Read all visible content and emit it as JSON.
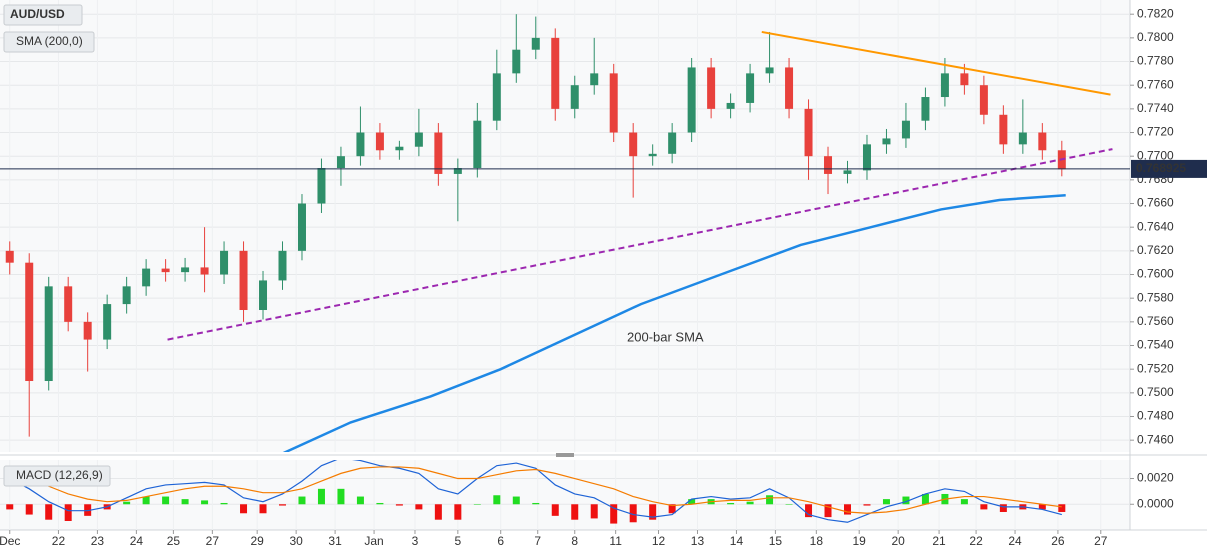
{
  "chart_data": [
    {
      "type": "candlestick",
      "title": "AUD/USD",
      "x": [
        0,
        1,
        2,
        3,
        4,
        5,
        6,
        7,
        8,
        9,
        10,
        11,
        12,
        13,
        14,
        15,
        16,
        17,
        18,
        19,
        20,
        21,
        22,
        23,
        24,
        25,
        26,
        27,
        28,
        29,
        30,
        31,
        32,
        33,
        34,
        35,
        36,
        37,
        38,
        39,
        40,
        41,
        42,
        43,
        44,
        45,
        46,
        47,
        48,
        49,
        50,
        51,
        52,
        53,
        54
      ],
      "open": [
        0.762,
        0.761,
        0.751,
        0.759,
        0.756,
        0.7545,
        0.7575,
        0.759,
        0.7605,
        0.7602,
        0.7606,
        0.76,
        0.762,
        0.757,
        0.7595,
        0.762,
        0.766,
        0.769,
        0.77,
        0.772,
        0.7705,
        0.7708,
        0.772,
        0.7685,
        0.769,
        0.773,
        0.777,
        0.779,
        0.78,
        0.774,
        0.776,
        0.777,
        0.772,
        0.77,
        0.7702,
        0.772,
        0.7775,
        0.774,
        0.7745,
        0.777,
        0.7775,
        0.774,
        0.77,
        0.7685,
        0.7688,
        0.771,
        0.7715,
        0.773,
        0.775,
        0.777,
        0.776,
        0.7735,
        0.771,
        0.772,
        0.7705
      ],
      "high": [
        0.7628,
        0.7618,
        0.7598,
        0.7598,
        0.7568,
        0.7583,
        0.7598,
        0.7613,
        0.7613,
        0.7614,
        0.764,
        0.7628,
        0.7628,
        0.7603,
        0.7628,
        0.7668,
        0.7698,
        0.7708,
        0.7742,
        0.7728,
        0.7713,
        0.774,
        0.7728,
        0.7698,
        0.7745,
        0.779,
        0.782,
        0.7818,
        0.7808,
        0.7768,
        0.78,
        0.7778,
        0.7728,
        0.771,
        0.7728,
        0.7783,
        0.7783,
        0.7753,
        0.7778,
        0.7805,
        0.7783,
        0.7748,
        0.7708,
        0.7696,
        0.7718,
        0.7723,
        0.7745,
        0.7758,
        0.7783,
        0.7778,
        0.7768,
        0.7743,
        0.7748,
        0.7728,
        0.7713
      ],
      "low": [
        0.76,
        0.7463,
        0.7502,
        0.7552,
        0.7518,
        0.7537,
        0.7567,
        0.7582,
        0.7594,
        0.7594,
        0.7585,
        0.7592,
        0.756,
        0.7562,
        0.7587,
        0.7612,
        0.7652,
        0.7675,
        0.7692,
        0.7697,
        0.7697,
        0.77,
        0.7675,
        0.7645,
        0.7682,
        0.7722,
        0.7762,
        0.7782,
        0.773,
        0.7732,
        0.7752,
        0.7712,
        0.7665,
        0.7692,
        0.7694,
        0.7712,
        0.7732,
        0.7732,
        0.7737,
        0.7762,
        0.7732,
        0.768,
        0.7668,
        0.7677,
        0.768,
        0.7702,
        0.7707,
        0.7722,
        0.7742,
        0.7752,
        0.7727,
        0.7702,
        0.7702,
        0.7697,
        0.7683
      ],
      "close": [
        0.761,
        0.751,
        0.759,
        0.756,
        0.7545,
        0.7575,
        0.759,
        0.7605,
        0.7602,
        0.7606,
        0.76,
        0.762,
        0.757,
        0.7595,
        0.762,
        0.766,
        0.769,
        0.77,
        0.772,
        0.7705,
        0.7708,
        0.772,
        0.7685,
        0.769,
        0.773,
        0.777,
        0.779,
        0.78,
        0.774,
        0.776,
        0.777,
        0.772,
        0.77,
        0.7702,
        0.772,
        0.7775,
        0.774,
        0.7745,
        0.777,
        0.7775,
        0.774,
        0.77,
        0.7685,
        0.7688,
        0.771,
        0.7715,
        0.773,
        0.775,
        0.777,
        0.776,
        0.7735,
        0.771,
        0.772,
        0.7705,
        0.7689
      ],
      "up_color": "#2f8f6a",
      "down_color": "#e8413c",
      "xlim": [
        -0.5,
        57.5
      ],
      "ylim": [
        0.745,
        0.7832
      ],
      "yticks": [
        {
          "value": 0.746,
          "label": "0.7460"
        },
        {
          "value": 0.748,
          "label": "0.7480"
        },
        {
          "value": 0.75,
          "label": "0.7500"
        },
        {
          "value": 0.752,
          "label": "0.7520"
        },
        {
          "value": 0.754,
          "label": "0.7540"
        },
        {
          "value": 0.756,
          "label": "0.7560"
        },
        {
          "value": 0.758,
          "label": "0.7580"
        },
        {
          "value": 0.76,
          "label": "0.7600"
        },
        {
          "value": 0.762,
          "label": "0.7620"
        },
        {
          "value": 0.764,
          "label": "0.7640"
        },
        {
          "value": 0.766,
          "label": "0.7660"
        },
        {
          "value": 0.768,
          "label": "0.7680"
        },
        {
          "value": 0.77,
          "label": "0.7700"
        },
        {
          "value": 0.772,
          "label": "0.7720"
        },
        {
          "value": 0.774,
          "label": "0.7740"
        },
        {
          "value": 0.776,
          "label": "0.7760"
        },
        {
          "value": 0.778,
          "label": "0.7780"
        },
        {
          "value": 0.78,
          "label": "0.7800"
        },
        {
          "value": 0.782,
          "label": "0.7820"
        }
      ],
      "xticks": [
        {
          "value": 0,
          "label": "Dec"
        },
        {
          "value": 2.5,
          "label": "22"
        },
        {
          "value": 4.5,
          "label": "23"
        },
        {
          "value": 6.5,
          "label": "24"
        },
        {
          "value": 8.4,
          "label": "25"
        },
        {
          "value": 10.4,
          "label": "27"
        },
        {
          "value": 12.7,
          "label": "29"
        },
        {
          "value": 14.7,
          "label": "30"
        },
        {
          "value": 16.7,
          "label": "31"
        },
        {
          "value": 18.7,
          "label": "Jan"
        },
        {
          "value": 20.8,
          "label": "3"
        },
        {
          "value": 23,
          "label": "5"
        },
        {
          "value": 25.2,
          "label": "6"
        },
        {
          "value": 27.1,
          "label": "7"
        },
        {
          "value": 29,
          "label": "8"
        },
        {
          "value": 31.1,
          "label": "11"
        },
        {
          "value": 33.3,
          "label": "12"
        },
        {
          "value": 35.3,
          "label": "13"
        },
        {
          "value": 37.3,
          "label": "14"
        },
        {
          "value": 39.3,
          "label": "15"
        },
        {
          "value": 41.4,
          "label": "18"
        },
        {
          "value": 43.6,
          "label": "19"
        },
        {
          "value": 45.6,
          "label": "20"
        },
        {
          "value": 47.7,
          "label": "21"
        },
        {
          "value": 49.6,
          "label": "22"
        },
        {
          "value": 51.6,
          "label": "24"
        },
        {
          "value": 53.8,
          "label": "26"
        },
        {
          "value": 56,
          "label": "27"
        }
      ],
      "grid": true,
      "last_price": 0.768925,
      "last_price_color": "#1f2d4d",
      "sma": {
        "name": "SMA (200,0)",
        "label": "200-bar SMA",
        "color": "#1e88e5",
        "x": [
          13.9,
          17.5,
          21.6,
          25.2,
          28.2,
          32.4,
          36.5,
          40.6,
          44.2,
          47.8,
          50.8,
          54.2
        ],
        "values": [
          0.7448,
          0.7475,
          0.7497,
          0.752,
          0.7543,
          0.7575,
          0.76,
          0.7625,
          0.764,
          0.7655,
          0.7663,
          0.7667
        ]
      },
      "trendlines": [
        {
          "color": "#ff9800",
          "style": "solid",
          "x": [
            38.6,
            56.5
          ],
          "values": [
            0.7805,
            0.7752
          ]
        },
        {
          "color": "#9c27b0",
          "style": "dashed",
          "x": [
            8.1,
            56.6
          ],
          "values": [
            0.7545,
            0.7706
          ]
        }
      ]
    },
    {
      "type": "macd",
      "title": "MACD (12,26,9)",
      "ylim": [
        -0.002,
        0.00344
      ],
      "yticks": [
        {
          "value": 0.002,
          "label": "0.0020"
        },
        {
          "value": 0,
          "label": "0.0000"
        }
      ],
      "series": [
        {
          "color": "#1e63d6",
          "values": [
            0.002,
            0.0012,
            0.0002,
            -0.0005,
            -0.0005,
            -0.0002,
            0.0005,
            0.0012,
            0.0015,
            0.0016,
            0.0017,
            0.0015,
            0.0005,
            0.0002,
            0.0008,
            0.0018,
            0.003,
            0.0036,
            0.0034,
            0.003,
            0.0028,
            0.0024,
            0.0012,
            0.0008,
            0.002,
            0.003,
            0.0032,
            0.0028,
            0.0015,
            0.0008,
            0.0005,
            -0.0003,
            -0.0008,
            -0.001,
            -0.0008,
            0.0004,
            0.0006,
            0.0004,
            0.0005,
            0.0012,
            0.0005,
            -0.0008,
            -0.0012,
            -0.0014,
            -0.0008,
            -0.0002,
            0.0002,
            0.0008,
            0.0012,
            0.001,
            0.0002,
            -0.0002,
            -0.0002,
            -0.0004,
            -0.0008
          ]
        },
        {
          "color": "#f57c00",
          "values": [
            0.0024,
            0.002,
            0.0014,
            0.0008,
            0.0004,
            0.0002,
            0.0003,
            0.0006,
            0.0009,
            0.0012,
            0.0014,
            0.0014,
            0.0012,
            0.0009,
            0.0009,
            0.0012,
            0.0018,
            0.0024,
            0.0028,
            0.0029,
            0.0029,
            0.0028,
            0.0024,
            0.002,
            0.002,
            0.0023,
            0.0026,
            0.0027,
            0.0024,
            0.002,
            0.0016,
            0.0012,
            0.0006,
            0.0002,
            -0.0001,
            0.0,
            0.0002,
            0.0003,
            0.0003,
            0.0005,
            0.0005,
            0.0002,
            -0.0002,
            -0.0006,
            -0.0007,
            -0.0006,
            -0.0004,
            0.0,
            0.0004,
            0.0006,
            0.0006,
            0.0004,
            0.0002,
            0.0,
            -0.0002
          ]
        }
      ],
      "histogram": [
        -0.0004,
        -0.0008,
        -0.0012,
        -0.0013,
        -0.0009,
        -0.0004,
        0.0002,
        0.0006,
        0.0006,
        0.0004,
        0.0003,
        0.0001,
        -0.0007,
        -0.0007,
        -0.0001,
        0.0006,
        0.0012,
        0.0012,
        0.0006,
        0.0001,
        -0.0001,
        -0.0004,
        -0.0012,
        -0.0012,
        0.0,
        0.0007,
        0.0006,
        0.0001,
        -0.0009,
        -0.0012,
        -0.0011,
        -0.0015,
        -0.0014,
        -0.0012,
        -0.0007,
        0.0004,
        0.0004,
        0.0001,
        0.0002,
        0.0007,
        0.0,
        -0.001,
        -0.001,
        -0.0008,
        -0.0001,
        0.0004,
        0.0006,
        0.0008,
        0.0008,
        0.0004,
        -0.0004,
        -0.0006,
        -0.0004,
        -0.0004,
        -0.0006
      ],
      "hist_up_color": "#22dd22",
      "hist_down_color": "#ee1111"
    }
  ]
}
